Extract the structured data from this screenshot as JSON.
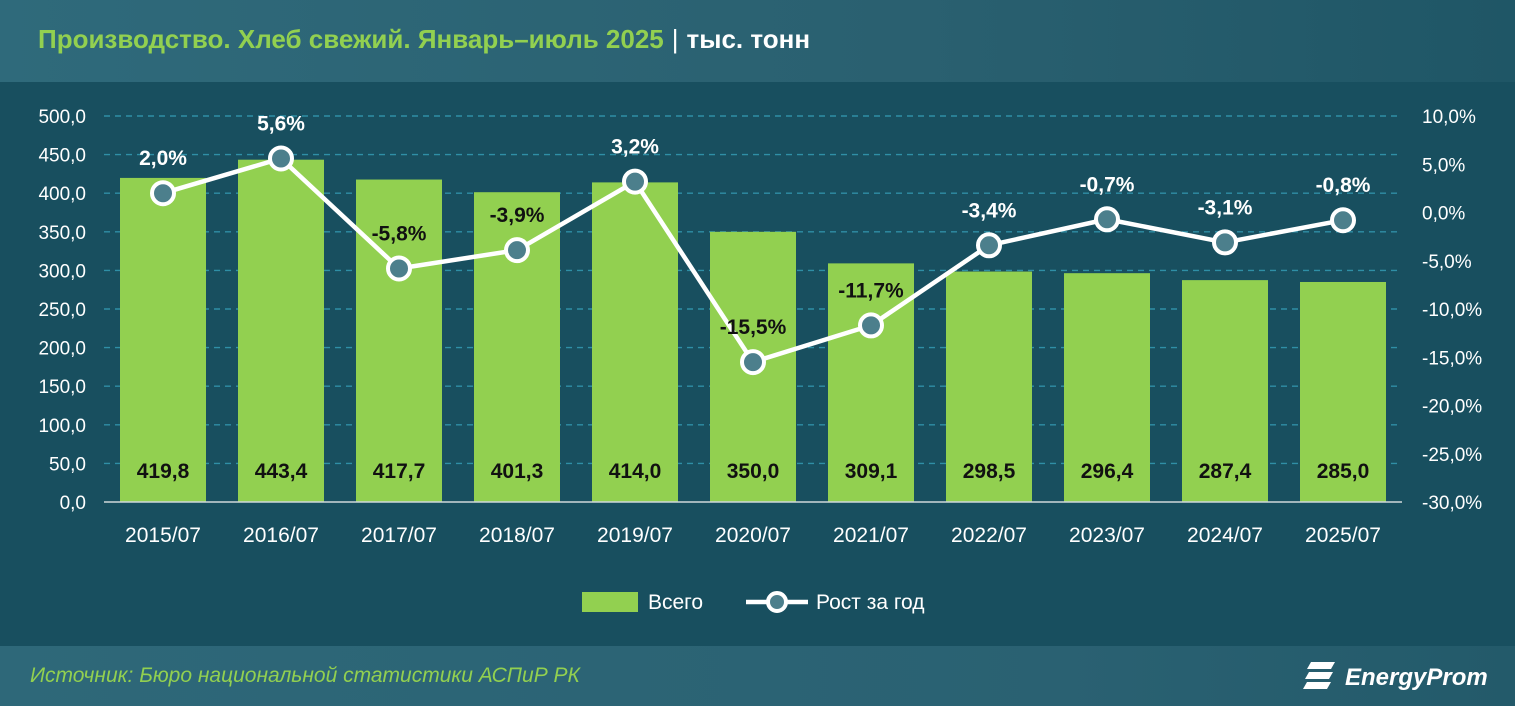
{
  "header": {
    "title": "Производство. Хлеб свежий. Январь–июль 2025",
    "separator": "|",
    "unit": "тыс. тонн"
  },
  "footer": {
    "source": "Источник: Бюро национальной статистики АСПиР РК",
    "logo_text": "EnergyProm"
  },
  "colors": {
    "bar": "#92d050",
    "line": "#ffffff",
    "background": "#184f5f",
    "title": "#92d050"
  },
  "chart_data": {
    "type": "bar",
    "title": "Производство. Хлеб свежий. Январь–июль 2025",
    "categories": [
      "2015/07",
      "2016/07",
      "2017/07",
      "2018/07",
      "2019/07",
      "2020/07",
      "2021/07",
      "2022/07",
      "2023/07",
      "2024/07",
      "2025/07"
    ],
    "series": [
      {
        "name": "Всего",
        "type": "bar",
        "axis": "left",
        "values": [
          419.8,
          443.4,
          417.7,
          401.3,
          414.0,
          350.0,
          309.1,
          298.5,
          296.4,
          287.4,
          285.0
        ],
        "labels": [
          "419,8",
          "443,4",
          "417,7",
          "401,3",
          "414,0",
          "350,0",
          "309,1",
          "298,5",
          "296,4",
          "287,4",
          "285,0"
        ]
      },
      {
        "name": "Рост за год",
        "type": "line",
        "axis": "right",
        "values": [
          2.0,
          5.6,
          -5.8,
          -3.9,
          3.2,
          -15.5,
          -11.7,
          -3.4,
          -0.7,
          -3.1,
          -0.8
        ],
        "labels": [
          "2,0%",
          "5,6%",
          "-5,8%",
          "-3,9%",
          "3,2%",
          "-15,5%",
          "-11,7%",
          "-3,4%",
          "-0,7%",
          "-3,1%",
          "-0,8%"
        ]
      }
    ],
    "y_left": {
      "ylim": [
        0,
        500
      ],
      "ticks": [
        "0,0",
        "50,0",
        "100,0",
        "150,0",
        "200,0",
        "250,0",
        "300,0",
        "350,0",
        "400,0",
        "450,0",
        "500,0"
      ]
    },
    "y_right": {
      "ylim": [
        -30,
        10
      ],
      "ticks": [
        "-30,0%",
        "-25,0%",
        "-20,0%",
        "-15,0%",
        "-10,0%",
        "-5,0%",
        "0,0%",
        "5,0%",
        "10,0%"
      ]
    },
    "grid": true,
    "legend": "bottom"
  }
}
